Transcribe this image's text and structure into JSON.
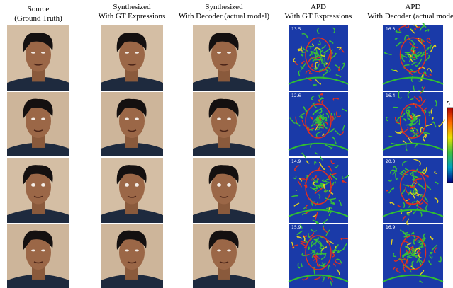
{
  "columns": [
    {
      "title": "Source",
      "subtitle": "(Ground Truth)"
    },
    {
      "title": "Synthesized",
      "subtitle": "With GT Expressions"
    },
    {
      "title": "Synthesized",
      "subtitle": "With Decoder (actual model)"
    },
    {
      "title": "APD",
      "subtitle": "With GT Expressions"
    },
    {
      "title": "APD",
      "subtitle": "With Decoder (actual model)"
    }
  ],
  "apd_scores": {
    "gt": [
      "13.5",
      "12.6",
      "14.9",
      "15.9"
    ],
    "decoder": [
      "16.3",
      "16.4",
      "20.0",
      "16.9"
    ]
  },
  "colorbar": {
    "top_label": "5"
  }
}
